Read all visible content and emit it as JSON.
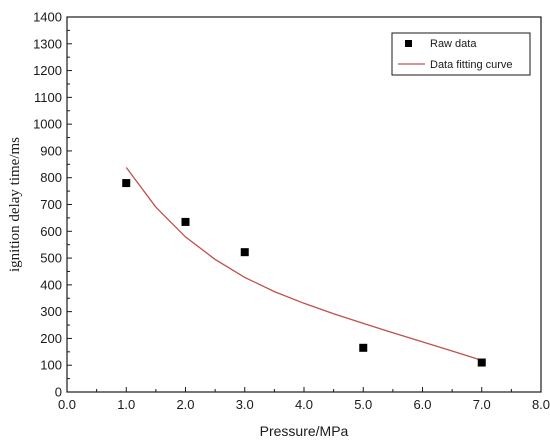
{
  "chart_data": {
    "type": "scatter",
    "title": "",
    "xlabel": "Pressure/MPa",
    "ylabel": "ignition delay time/ms",
    "xlim": [
      0.0,
      8.0
    ],
    "ylim": [
      0,
      1400
    ],
    "x_ticks": [
      "0.0",
      "1.0",
      "2.0",
      "3.0",
      "4.0",
      "5.0",
      "6.0",
      "7.0",
      "8.0"
    ],
    "y_ticks": [
      "0",
      "100",
      "200",
      "300",
      "400",
      "500",
      "600",
      "700",
      "800",
      "900",
      "1000",
      "1100",
      "1200",
      "1300",
      "1400"
    ],
    "grid": false,
    "legend_position": "top-right",
    "series": [
      {
        "name": "Raw data",
        "kind": "scatter",
        "marker": "square",
        "color": "#000000",
        "x": [
          1.0,
          2.0,
          3.0,
          5.0,
          7.0
        ],
        "y": [
          780,
          635,
          522,
          165,
          110
        ]
      },
      {
        "name": "Data fitting curve",
        "kind": "line",
        "color": "#c0504d",
        "x": [
          1.0,
          1.5,
          2.0,
          2.5,
          3.0,
          3.5,
          4.0,
          4.5,
          5.0,
          5.5,
          6.0,
          6.5,
          7.0
        ],
        "y": [
          838,
          690,
          579,
          495,
          428,
          375,
          331,
          292,
          256,
          221,
          187,
          153,
          118
        ]
      }
    ]
  }
}
